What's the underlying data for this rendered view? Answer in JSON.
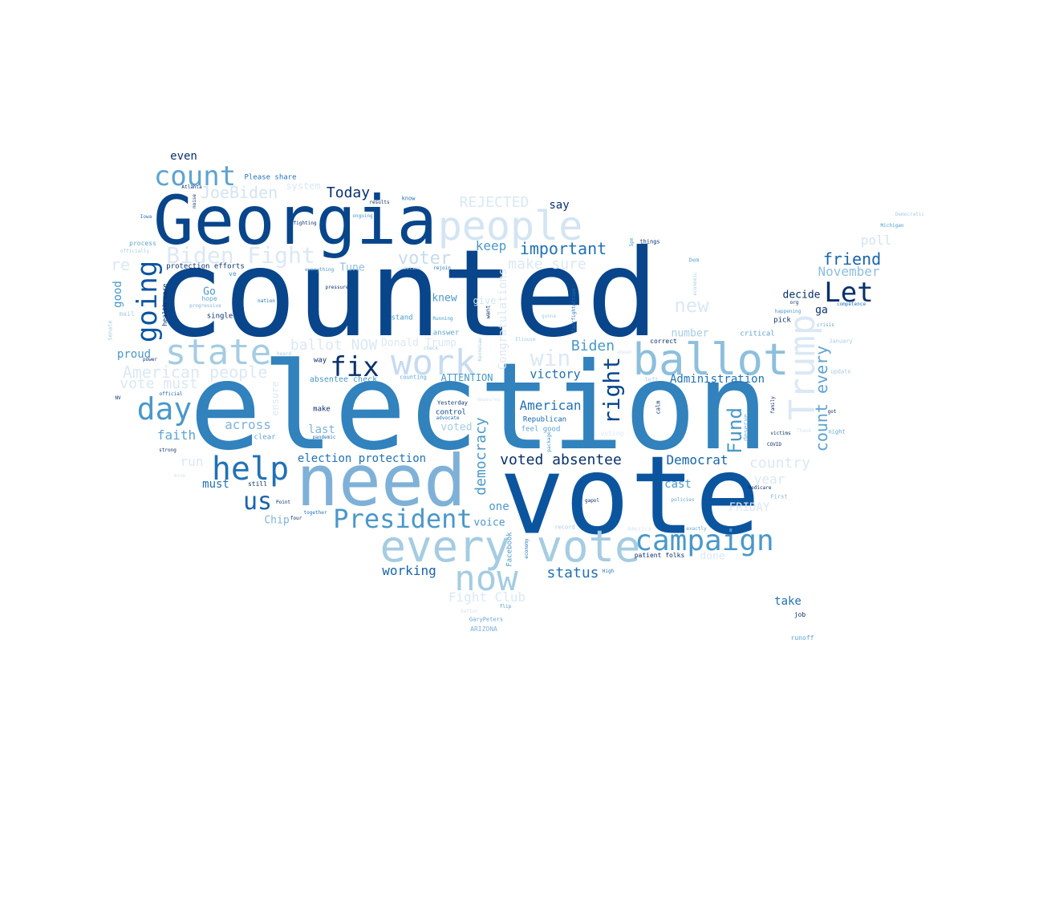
{
  "words": [
    {
      "text": "election",
      "size": 150,
      "color": "#3182bd"
    },
    {
      "text": "counted",
      "size": 150,
      "color": "#08458a"
    },
    {
      "text": "vote",
      "size": 135,
      "color": "#0b559f"
    },
    {
      "text": "need",
      "size": 88,
      "color": "#7fb1d8"
    },
    {
      "text": "Georgia",
      "size": 84,
      "color": "#08458a"
    },
    {
      "text": "ballot",
      "size": 54,
      "color": "#8dbfdd"
    },
    {
      "text": "every vote",
      "size": 54,
      "color": "#a5cce2"
    },
    {
      "text": "people",
      "size": 50,
      "color": "#d4e4f3"
    },
    {
      "text": "state",
      "size": 44,
      "color": "#a5cce2"
    },
    {
      "text": "work",
      "size": 44,
      "color": "#c6dbef"
    },
    {
      "text": "Trump",
      "size": 44,
      "color": "#dbe8f5"
    },
    {
      "text": "now",
      "size": 44,
      "color": "#a5cce2"
    },
    {
      "text": "help",
      "size": 40,
      "color": "#2171b5"
    },
    {
      "text": "day",
      "size": 38,
      "color": "#4a98c9"
    },
    {
      "text": "campaign",
      "size": 36,
      "color": "#4a98c9"
    },
    {
      "text": "count",
      "size": 34,
      "color": "#5ea3d0"
    },
    {
      "text": "going",
      "size": 34,
      "color": "#0b559f"
    },
    {
      "text": "Let",
      "size": 34,
      "color": "#08306b"
    },
    {
      "text": "fix",
      "size": 34,
      "color": "#08306b"
    },
    {
      "text": "President",
      "size": 32,
      "color": "#4a98c9"
    },
    {
      "text": "us",
      "size": 30,
      "color": "#1764ab"
    },
    {
      "text": "Biden Fight",
      "size": 28,
      "color": "#dbe8f5"
    },
    {
      "text": "right",
      "size": 28,
      "color": "#08458a"
    },
    {
      "text": "win",
      "size": 28,
      "color": "#dbe8f5"
    },
    {
      "text": "Fund",
      "size": 24,
      "color": "#4a98c9"
    },
    {
      "text": "new",
      "size": 24,
      "color": "#dbe8f5"
    },
    {
      "text": "voter",
      "size": 22,
      "color": "#c6dbef"
    },
    {
      "text": "count every",
      "size": 20,
      "color": "#5ea3d0"
    },
    {
      "text": "American people",
      "size": 20,
      "color": "#dbe8f5"
    },
    {
      "text": "important",
      "size": 20,
      "color": "#2171b5"
    },
    {
      "text": "JoeBiden",
      "size": 20,
      "color": "#d4e4f3"
    },
    {
      "text": "friend",
      "size": 20,
      "color": "#1764ab"
    },
    {
      "text": "country",
      "size": 18,
      "color": "#dbe8f5"
    },
    {
      "text": "Today",
      "size": 18,
      "color": "#08306b"
    },
    {
      "text": "ballot NOW",
      "size": 18,
      "color": "#dbe8f5"
    },
    {
      "text": "REJECTED",
      "size": 18,
      "color": "#dbe8f5"
    },
    {
      "text": "make sure",
      "size": 18,
      "color": "#dbe8f5"
    },
    {
      "text": "Biden",
      "size": 18,
      "color": "#4a98c9"
    },
    {
      "text": "democracy",
      "size": 18,
      "color": "#4a98c9"
    },
    {
      "text": "voted absentee",
      "size": 18,
      "color": "#08306b"
    },
    {
      "text": "status",
      "size": 18,
      "color": "#2171b5"
    },
    {
      "text": "vote must",
      "size": 18,
      "color": "#dbe8f5"
    },
    {
      "text": "American",
      "size": 16,
      "color": "#2171b5"
    },
    {
      "text": "keep",
      "size": 16,
      "color": "#4a98c9"
    },
    {
      "text": "Democrat",
      "size": 16,
      "color": "#1764ab"
    },
    {
      "text": "November",
      "size": 16,
      "color": "#8dbfdd"
    },
    {
      "text": "victory",
      "size": 15,
      "color": "#2171b5"
    },
    {
      "text": "across",
      "size": 16,
      "color": "#7fb1d8"
    },
    {
      "text": "Fight Club",
      "size": 16,
      "color": "#dbe8f5"
    },
    {
      "text": "poll",
      "size": 16,
      "color": "#d4e4f3"
    },
    {
      "text": "faith",
      "size": 16,
      "color": "#5ea3d0"
    },
    {
      "text": "working",
      "size": 16,
      "color": "#1764ab"
    },
    {
      "text": "FRIDAY",
      "size": 14,
      "color": "#dbe8f5"
    },
    {
      "text": "year",
      "size": 16,
      "color": "#dbe8f5"
    },
    {
      "text": "good",
      "size": 14,
      "color": "#4a98c9"
    },
    {
      "text": "election protection",
      "size": 14,
      "color": "#2171b5"
    },
    {
      "text": "Administration",
      "size": 14,
      "color": "#2171b5"
    },
    {
      "text": "last",
      "size": 14,
      "color": "#7fb1d8"
    },
    {
      "text": "Congratulations",
      "size": 14,
      "color": "#dbe8f5"
    },
    {
      "text": "cast",
      "size": 14,
      "color": "#4a98c9"
    },
    {
      "text": "one",
      "size": 14,
      "color": "#4a98c9"
    },
    {
      "text": "proud",
      "size": 14,
      "color": "#4a98c9"
    },
    {
      "text": "even",
      "size": 14,
      "color": "#08306b"
    },
    {
      "text": "take",
      "size": 14,
      "color": "#2171b5"
    },
    {
      "text": "say",
      "size": 14,
      "color": "#08306b"
    },
    {
      "text": "must",
      "size": 14,
      "color": "#2171b5"
    },
    {
      "text": "decide",
      "size": 13,
      "color": "#08306b"
    },
    {
      "text": "Go",
      "size": 13,
      "color": "#4a98c9"
    },
    {
      "text": "ga",
      "size": 13,
      "color": "#08306b"
    },
    {
      "text": "knew",
      "size": 13,
      "color": "#4a98c9"
    },
    {
      "text": "Tune",
      "size": 13,
      "color": "#8dbfdd"
    },
    {
      "text": "Chip",
      "size": 13,
      "color": "#7fb1d8"
    },
    {
      "text": "voted",
      "size": 13,
      "color": "#a5cce2"
    },
    {
      "text": "voice",
      "size": 13,
      "color": "#4a98c9"
    },
    {
      "text": "number",
      "size": 13,
      "color": "#a5cce2"
    },
    {
      "text": "ATTENTION",
      "size": 12,
      "color": "#4a98c9"
    },
    {
      "text": "done",
      "size": 13,
      "color": "#dbe8f5"
    },
    {
      "text": "give",
      "size": 12,
      "color": "#d4e4f3"
    },
    {
      "text": "absentee check",
      "size": 10,
      "color": "#4a98c9"
    },
    {
      "text": "Donald Trump",
      "size": 13,
      "color": "#dbe8f5"
    },
    {
      "text": "system",
      "size": 12,
      "color": "#dbe8f5"
    },
    {
      "text": "Please share",
      "size": 9,
      "color": "#2171b5"
    },
    {
      "text": "protection efforts",
      "size": 9,
      "color": "#08306b"
    },
    {
      "text": "Facebook",
      "size": 9,
      "color": "#4a98c9"
    },
    {
      "text": "Republican",
      "size": 9,
      "color": "#1764ab"
    },
    {
      "text": "feel good",
      "size": 9,
      "color": "#5ea3d0"
    },
    {
      "text": "control",
      "size": 9,
      "color": "#08458a"
    },
    {
      "text": "pick",
      "size": 9,
      "color": "#08306b"
    },
    {
      "text": "critical",
      "size": 9,
      "color": "#5ea3d0"
    },
    {
      "text": "correct",
      "size": 8,
      "color": "#08306b"
    },
    {
      "text": "single",
      "size": 9,
      "color": "#08306b"
    },
    {
      "text": "stand",
      "size": 9,
      "color": "#4a98c9"
    },
    {
      "text": "answer",
      "size": 9,
      "color": "#5ea3d0"
    },
    {
      "text": "make",
      "size": 9,
      "color": "#08306b"
    },
    {
      "text": "way",
      "size": 9,
      "color": "#08306b"
    },
    {
      "text": "clear",
      "size": 9,
      "color": "#5ea3d0"
    },
    {
      "text": "still",
      "size": 8,
      "color": "#08306b"
    },
    {
      "text": "process",
      "size": 8,
      "color": "#5ea3d0"
    },
    {
      "text": "hope",
      "size": 8,
      "color": "#5ea3d0"
    },
    {
      "text": "job",
      "size": 8,
      "color": "#08306b"
    },
    {
      "text": "runoff",
      "size": 8,
      "color": "#5ea3d0"
    },
    {
      "text": "ARIZONA",
      "size": 8,
      "color": "#7fb1d8"
    },
    {
      "text": "GaryPeters",
      "size": 7,
      "color": "#5ea3d0"
    },
    {
      "text": "patient folks",
      "size": 8,
      "color": "#08306b"
    },
    {
      "text": "things",
      "size": 7,
      "color": "#08306b"
    },
    {
      "text": "know",
      "size": 7,
      "color": "#2171b5"
    },
    {
      "text": "results",
      "size": 6,
      "color": "#08306b"
    },
    {
      "text": "ongoing",
      "size": 6,
      "color": "#4a98c9"
    },
    {
      "text": "fighting",
      "size": 6,
      "color": "#08306b"
    },
    {
      "text": "Atlanta",
      "size": 6,
      "color": "#08306b"
    },
    {
      "text": "Iowa",
      "size": 6,
      "color": "#2171b5"
    },
    {
      "text": "officially",
      "size": 6,
      "color": "#a5cce2"
    },
    {
      "text": "pressure",
      "size": 6,
      "color": "#08306b"
    },
    {
      "text": "everything",
      "size": 6,
      "color": "#4a98c9"
    },
    {
      "text": "nation",
      "size": 6,
      "color": "#2171b5"
    },
    {
      "text": "progressive",
      "size": 6,
      "color": "#7fb1d8"
    },
    {
      "text": "rejoin",
      "size": 6,
      "color": "#2171b5"
    },
    {
      "text": "sometime",
      "size": 6,
      "color": "#d4e4f3"
    },
    {
      "text": "heard",
      "size": 6,
      "color": "#a5cce2"
    },
    {
      "text": "counting",
      "size": 7,
      "color": "#5ea3d0"
    },
    {
      "text": "Yesterday",
      "size": 7,
      "color": "#08306b"
    },
    {
      "text": "advocate",
      "size": 6,
      "color": "#2171b5"
    },
    {
      "text": "official",
      "size": 6,
      "color": "#1764ab"
    },
    {
      "text": "power",
      "size": 6,
      "color": "#08306b"
    },
    {
      "text": "strong",
      "size": 6,
      "color": "#08306b"
    },
    {
      "text": "move",
      "size": 6,
      "color": "#d4e4f3"
    },
    {
      "text": "pandemic",
      "size": 6,
      "color": "#2171b5"
    },
    {
      "text": "together",
      "size": 6,
      "color": "#2171b5"
    },
    {
      "text": "Point",
      "size": 6,
      "color": "#08306b"
    },
    {
      "text": "four",
      "size": 6,
      "color": "#08306b"
    },
    {
      "text": "gapol",
      "size": 6,
      "color": "#08306b"
    },
    {
      "text": "policies",
      "size": 6,
      "color": "#5ea3d0"
    },
    {
      "text": "Medicare",
      "size": 6,
      "color": "#08306b"
    },
    {
      "text": "First",
      "size": 7,
      "color": "#7fb1d8"
    },
    {
      "text": "COVID",
      "size": 6,
      "color": "#08306b"
    },
    {
      "text": "victims",
      "size": 6,
      "color": "#08306b"
    },
    {
      "text": "Thank",
      "size": 6,
      "color": "#d4e4f3"
    },
    {
      "text": "night",
      "size": 7,
      "color": "#5ea3d0"
    },
    {
      "text": "got",
      "size": 6,
      "color": "#08306b"
    },
    {
      "text": "update",
      "size": 7,
      "color": "#a5cce2"
    },
    {
      "text": "January",
      "size": 7,
      "color": "#a5cce2"
    },
    {
      "text": "crisis",
      "size": 6,
      "color": "#5ea3d0"
    },
    {
      "text": "competence",
      "size": 6,
      "color": "#2171b5"
    },
    {
      "text": "happening",
      "size": 6,
      "color": "#4a98c9"
    },
    {
      "text": "org",
      "size": 6,
      "color": "#08306b"
    },
    {
      "text": "Democratic",
      "size": 6,
      "color": "#a5cce2"
    },
    {
      "text": "Michigan",
      "size": 6,
      "color": "#4a98c9"
    },
    {
      "text": "Dem",
      "size": 7,
      "color": "#5ea3d0"
    },
    {
      "text": "left",
      "size": 7,
      "color": "#a5cce2"
    },
    {
      "text": "America",
      "size": 7,
      "color": "#d4e4f3"
    },
    {
      "text": "exactly",
      "size": 6,
      "color": "#5ea3d0"
    },
    {
      "text": "record",
      "size": 7,
      "color": "#a5cce2"
    },
    {
      "text": "High",
      "size": 6,
      "color": "#2171b5"
    },
    {
      "text": "flip",
      "size": 6,
      "color": "#4a98c9"
    },
    {
      "text": "better",
      "size": 6,
      "color": "#d4e4f3"
    },
    {
      "text": "Running",
      "size": 6,
      "color": "#4a98c9"
    },
    {
      "text": "check",
      "size": 6,
      "color": "#a5cce2"
    },
    {
      "text": "Eliouse",
      "size": 6,
      "color": "#a5cce2"
    },
    {
      "text": "gonna",
      "size": 6,
      "color": "#a5cce2"
    },
    {
      "text": "measures",
      "size": 6,
      "color": "#d4e4f3"
    },
    {
      "text": "ahead",
      "size": 6,
      "color": "#d4e4f3"
    },
    {
      "text": "voting",
      "size": 8,
      "color": "#dbe8f5"
    },
    {
      "text": "mail",
      "size": 8,
      "color": "#a5cce2"
    },
    {
      "text": "ve",
      "size": 8,
      "color": "#4a98c9"
    },
    {
      "text": "ensure",
      "size": 12,
      "color": "#dbe8f5"
    },
    {
      "text": "calm",
      "size": 7,
      "color": "#08306b"
    },
    {
      "text": "deserve",
      "size": 8,
      "color": "#7fb1d8"
    },
    {
      "text": "family",
      "size": 6,
      "color": "#08306b"
    },
    {
      "text": "want",
      "size": 7,
      "color": "#08306b"
    },
    {
      "text": "package",
      "size": 6,
      "color": "#4a98c9"
    },
    {
      "text": "fairfightaction",
      "size": 6,
      "color": "#2171b5"
    },
    {
      "text": "economic",
      "size": 6,
      "color": "#a5cce2"
    },
    {
      "text": "economy",
      "size": 6,
      "color": "#2171b5"
    },
    {
      "text": "Kennesaw",
      "size": 6,
      "color": "#a5cce2"
    },
    {
      "text": "noise",
      "size": 6,
      "color": "#08306b"
    },
    {
      "text": "health care",
      "size": 8,
      "color": "#08306b"
    },
    {
      "text": "Senate",
      "size": 7,
      "color": "#a5cce2"
    },
    {
      "text": "NV",
      "size": 6,
      "color": "#08306b"
    },
    {
      "text": "5pm",
      "size": 6,
      "color": "#4a98c9"
    },
    {
      "text": "re",
      "size": 20,
      "color": "#dbe8f5"
    },
    {
      "text": "run",
      "size": 16,
      "color": "#dbe8f5"
    }
  ]
}
